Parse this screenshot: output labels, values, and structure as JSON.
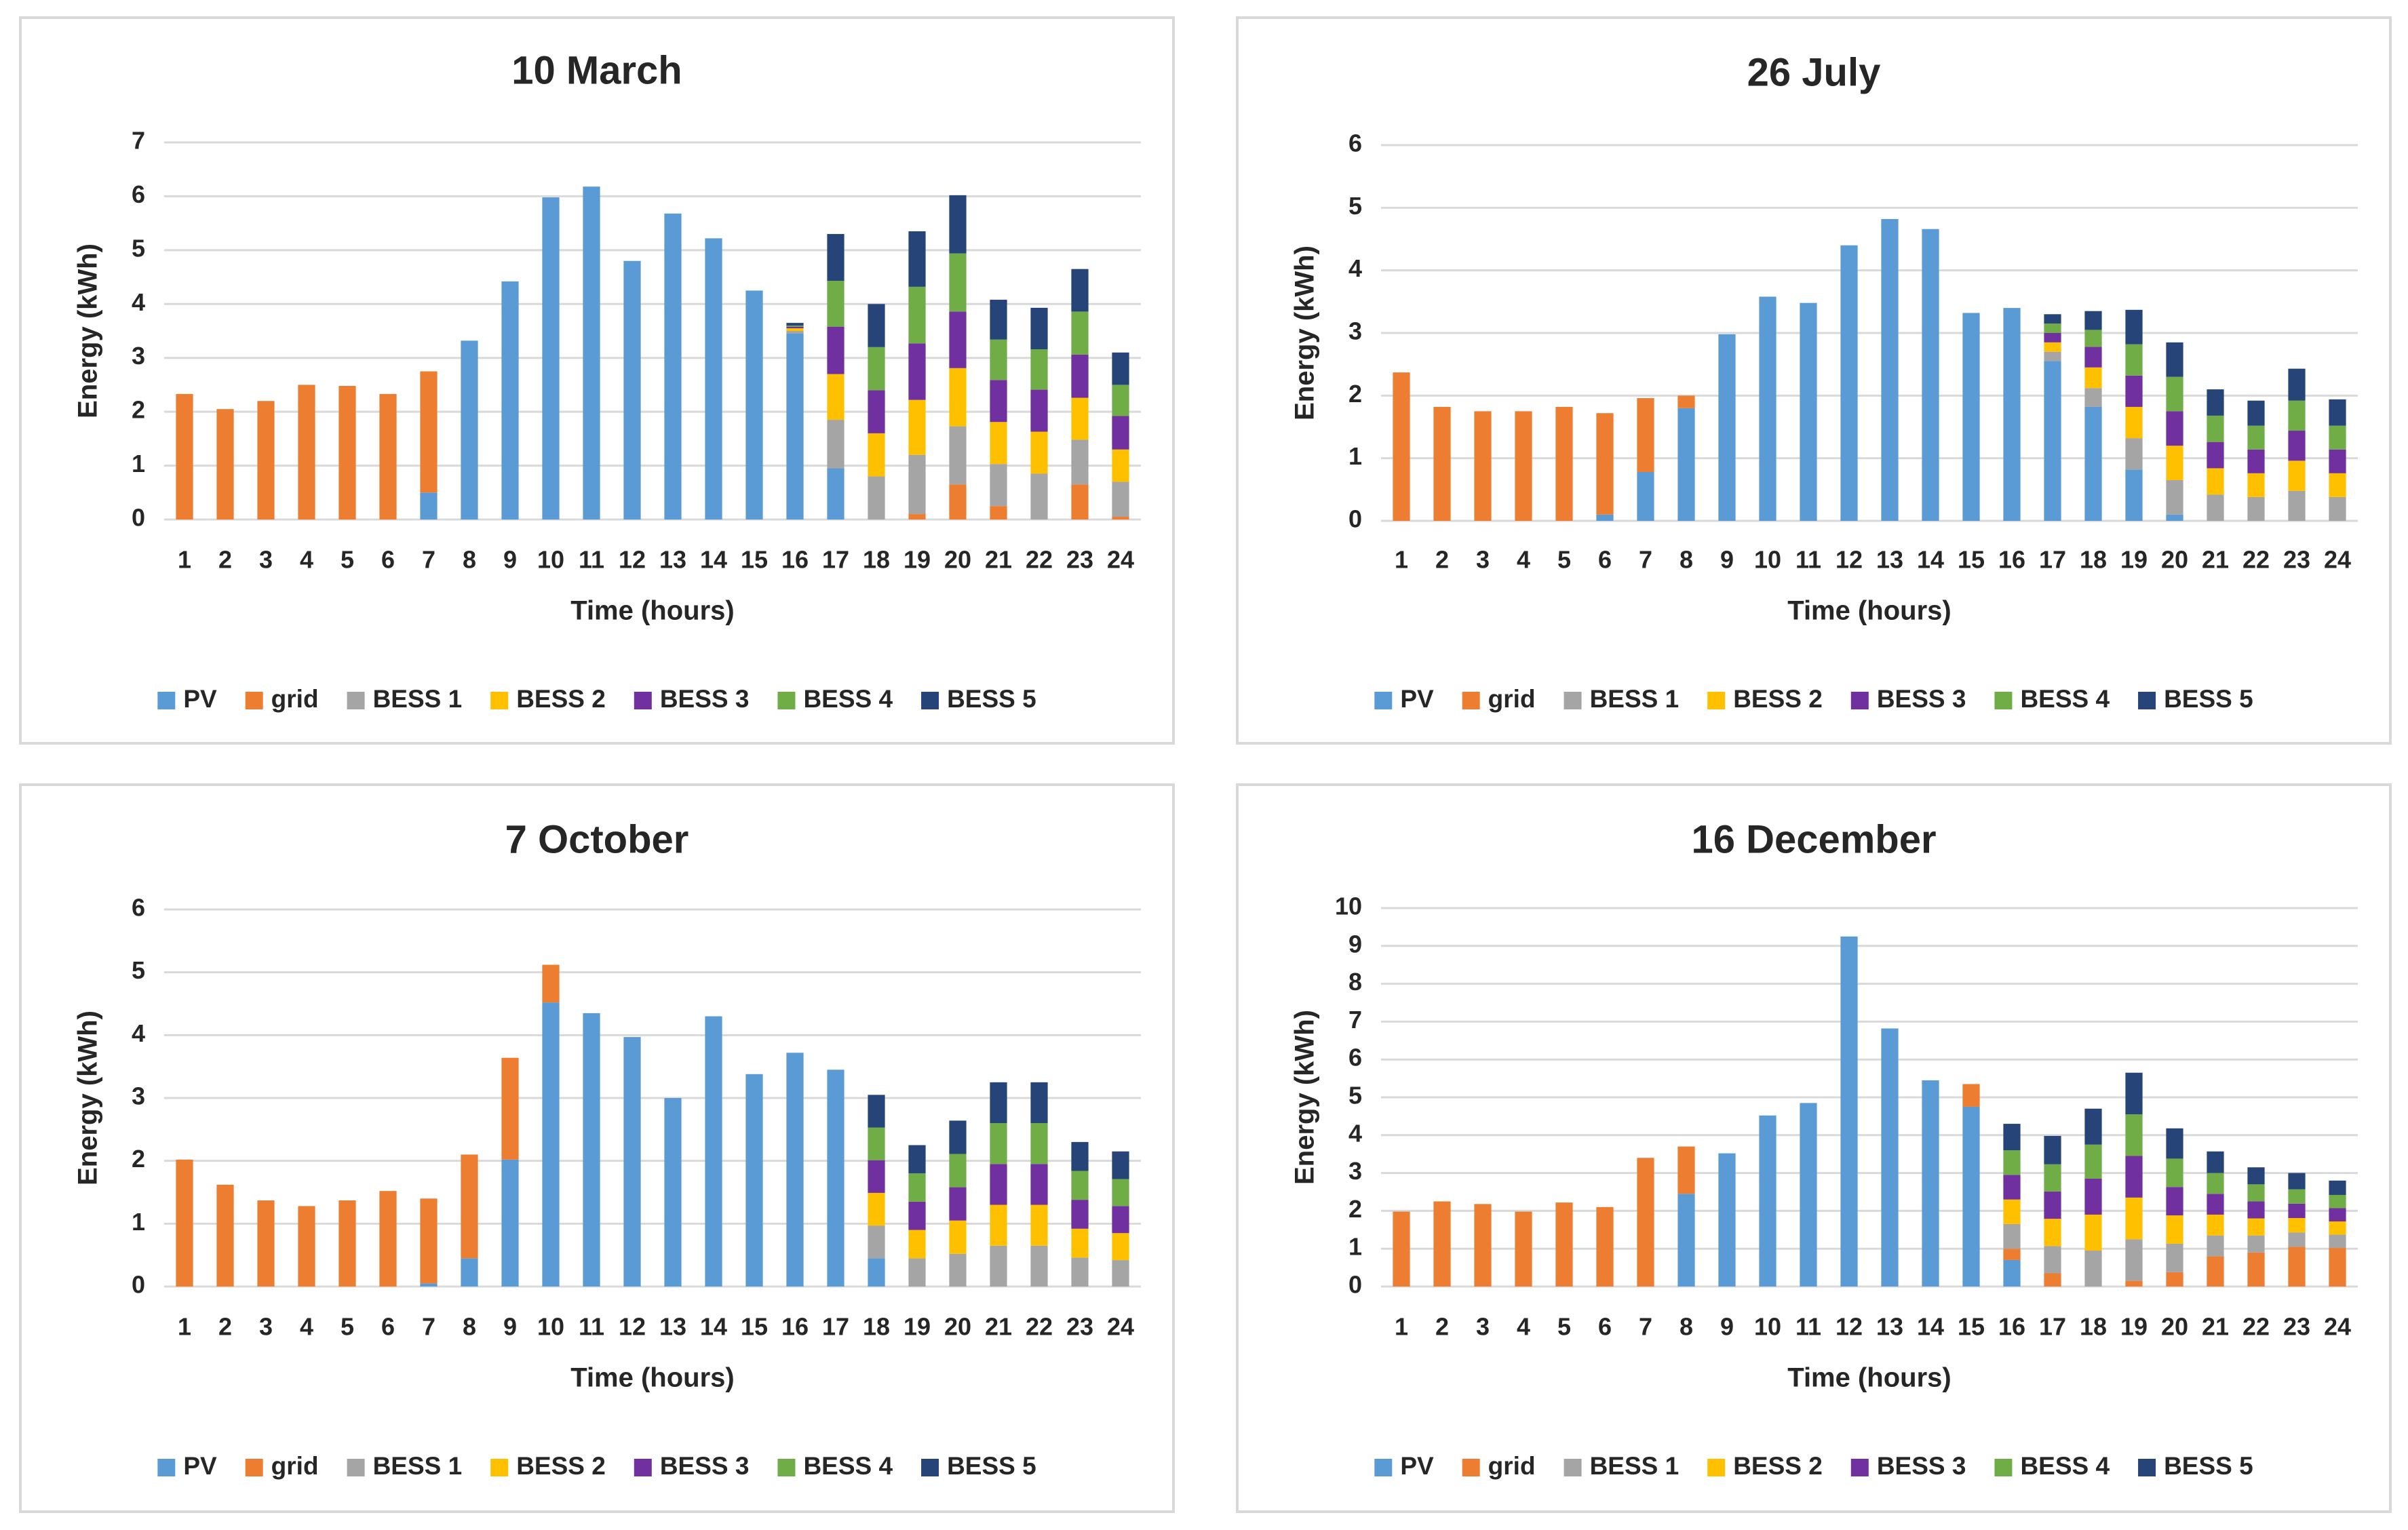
{
  "colors": {
    "PV": "#5b9bd5",
    "grid": "#ed7d31",
    "BESS 1": "#a5a5a5",
    "BESS 2": "#ffc000",
    "BESS 3": "#7030a0",
    "BESS 4": "#70ad47",
    "BESS 5": "#264478",
    "gridline": "#d9d9d9",
    "border": "#d9d9d9"
  },
  "chart_data": [
    {
      "type": "bar",
      "stacked": true,
      "title": "10 March",
      "xlabel": "Time (hours)",
      "ylabel": "Energy (kWh)",
      "ylim": [
        0,
        7
      ],
      "yticks": [
        0,
        1,
        2,
        3,
        4,
        5,
        6,
        7
      ],
      "grid": true,
      "legend": "bottom",
      "categories": [
        "1",
        "2",
        "3",
        "4",
        "5",
        "6",
        "7",
        "8",
        "9",
        "10",
        "11",
        "12",
        "13",
        "14",
        "15",
        "16",
        "17",
        "18",
        "19",
        "20",
        "21",
        "22",
        "23",
        "24"
      ],
      "series": [
        {
          "name": "PV",
          "values": [
            0,
            0,
            0,
            0,
            0,
            0,
            0.5,
            3.32,
            4.42,
            5.98,
            6.18,
            4.8,
            5.68,
            5.22,
            4.25,
            3.45,
            0.95,
            0,
            0,
            0,
            0,
            0,
            0,
            0
          ]
        },
        {
          "name": "grid",
          "values": [
            2.33,
            2.05,
            2.2,
            2.5,
            2.48,
            2.33,
            2.25,
            0,
            0,
            0,
            0,
            0,
            0,
            0,
            0,
            0,
            0,
            0,
            0.1,
            0.65,
            0.25,
            0,
            0.65,
            0.05
          ]
        },
        {
          "name": "BESS 1",
          "values": [
            0,
            0,
            0,
            0,
            0,
            0,
            0,
            0,
            0,
            0,
            0,
            0,
            0,
            0,
            0,
            0.05,
            0.9,
            0.8,
            1.1,
            1.08,
            0.78,
            0.85,
            0.83,
            0.65
          ]
        },
        {
          "name": "BESS 2",
          "values": [
            0,
            0,
            0,
            0,
            0,
            0,
            0,
            0,
            0,
            0,
            0,
            0,
            0,
            0,
            0,
            0.05,
            0.85,
            0.8,
            1.02,
            1.08,
            0.78,
            0.78,
            0.78,
            0.6
          ]
        },
        {
          "name": "BESS 3",
          "values": [
            0,
            0,
            0,
            0,
            0,
            0,
            0,
            0,
            0,
            0,
            0,
            0,
            0,
            0,
            0,
            0.03,
            0.88,
            0.8,
            1.05,
            1.05,
            0.78,
            0.78,
            0.8,
            0.62
          ]
        },
        {
          "name": "BESS 4",
          "values": [
            0,
            0,
            0,
            0,
            0,
            0,
            0,
            0,
            0,
            0,
            0,
            0,
            0,
            0,
            0,
            0.02,
            0.85,
            0.8,
            1.05,
            1.08,
            0.75,
            0.75,
            0.8,
            0.58
          ]
        },
        {
          "name": "BESS 5",
          "values": [
            0,
            0,
            0,
            0,
            0,
            0,
            0,
            0,
            0,
            0,
            0,
            0,
            0,
            0,
            0,
            0.05,
            0.87,
            0.8,
            1.03,
            1.08,
            0.74,
            0.77,
            0.79,
            0.6
          ]
        }
      ]
    },
    {
      "type": "bar",
      "stacked": true,
      "title": "26 July",
      "xlabel": "Time (hours)",
      "ylabel": "Energy (kWh)",
      "ylim": [
        0,
        6
      ],
      "yticks": [
        0,
        1,
        2,
        3,
        4,
        5,
        6
      ],
      "grid": true,
      "legend": "bottom",
      "categories": [
        "1",
        "2",
        "3",
        "4",
        "5",
        "6",
        "7",
        "8",
        "9",
        "10",
        "11",
        "12",
        "13",
        "14",
        "15",
        "16",
        "17",
        "18",
        "19",
        "20",
        "21",
        "22",
        "23",
        "24"
      ],
      "series": [
        {
          "name": "PV",
          "values": [
            0,
            0,
            0,
            0,
            0,
            0.1,
            0.78,
            1.8,
            2.98,
            3.58,
            3.48,
            4.4,
            4.82,
            4.66,
            3.32,
            3.4,
            2.55,
            1.82,
            0.82,
            0.1,
            0,
            0,
            0,
            0
          ]
        },
        {
          "name": "grid",
          "values": [
            2.37,
            1.82,
            1.75,
            1.75,
            1.82,
            1.62,
            1.18,
            0.2,
            0,
            0,
            0,
            0,
            0,
            0,
            0,
            0,
            0,
            0,
            0,
            0,
            0,
            0,
            0,
            0
          ]
        },
        {
          "name": "BESS 1",
          "values": [
            0,
            0,
            0,
            0,
            0,
            0,
            0,
            0,
            0,
            0,
            0,
            0,
            0,
            0,
            0,
            0,
            0.15,
            0.3,
            0.5,
            0.55,
            0.42,
            0.38,
            0.48,
            0.38
          ]
        },
        {
          "name": "BESS 2",
          "values": [
            0,
            0,
            0,
            0,
            0,
            0,
            0,
            0,
            0,
            0,
            0,
            0,
            0,
            0,
            0,
            0,
            0.15,
            0.33,
            0.5,
            0.55,
            0.42,
            0.38,
            0.48,
            0.38
          ]
        },
        {
          "name": "BESS 3",
          "values": [
            0,
            0,
            0,
            0,
            0,
            0,
            0,
            0,
            0,
            0,
            0,
            0,
            0,
            0,
            0,
            0,
            0.15,
            0.33,
            0.5,
            0.55,
            0.42,
            0.38,
            0.48,
            0.38
          ]
        },
        {
          "name": "BESS 4",
          "values": [
            0,
            0,
            0,
            0,
            0,
            0,
            0,
            0,
            0,
            0,
            0,
            0,
            0,
            0,
            0,
            0,
            0.15,
            0.27,
            0.5,
            0.55,
            0.42,
            0.38,
            0.48,
            0.38
          ]
        },
        {
          "name": "BESS 5",
          "values": [
            0,
            0,
            0,
            0,
            0,
            0,
            0,
            0,
            0,
            0,
            0,
            0,
            0,
            0,
            0,
            0,
            0.15,
            0.3,
            0.55,
            0.55,
            0.42,
            0.4,
            0.51,
            0.42
          ]
        }
      ]
    },
    {
      "type": "bar",
      "stacked": true,
      "title": "7 October",
      "xlabel": "Time (hours)",
      "ylabel": "Energy (kWh)",
      "ylim": [
        0,
        6
      ],
      "yticks": [
        0,
        1,
        2,
        3,
        4,
        5,
        6
      ],
      "grid": true,
      "legend": "bottom",
      "categories": [
        "1",
        "2",
        "3",
        "4",
        "5",
        "6",
        "7",
        "8",
        "9",
        "10",
        "11",
        "12",
        "13",
        "14",
        "15",
        "16",
        "17",
        "18",
        "19",
        "20",
        "21",
        "22",
        "23",
        "24"
      ],
      "series": [
        {
          "name": "PV",
          "values": [
            0,
            0,
            0,
            0,
            0,
            0,
            0.05,
            0.45,
            2.02,
            4.52,
            4.35,
            3.97,
            3.0,
            4.3,
            3.38,
            3.72,
            3.45,
            0.45,
            0,
            0,
            0,
            0,
            0,
            0
          ]
        },
        {
          "name": "grid",
          "values": [
            2.02,
            1.62,
            1.37,
            1.28,
            1.37,
            1.52,
            1.35,
            1.65,
            1.62,
            0.6,
            0,
            0,
            0,
            0,
            0,
            0,
            0,
            0,
            0,
            0,
            0,
            0,
            0,
            0
          ]
        },
        {
          "name": "BESS 1",
          "values": [
            0,
            0,
            0,
            0,
            0,
            0,
            0,
            0,
            0,
            0,
            0,
            0,
            0,
            0,
            0,
            0,
            0,
            0.52,
            0.45,
            0.52,
            0.65,
            0.65,
            0.46,
            0.42
          ]
        },
        {
          "name": "BESS 2",
          "values": [
            0,
            0,
            0,
            0,
            0,
            0,
            0,
            0,
            0,
            0,
            0,
            0,
            0,
            0,
            0,
            0,
            0,
            0.52,
            0.45,
            0.53,
            0.65,
            0.65,
            0.46,
            0.43
          ]
        },
        {
          "name": "BESS 3",
          "values": [
            0,
            0,
            0,
            0,
            0,
            0,
            0,
            0,
            0,
            0,
            0,
            0,
            0,
            0,
            0,
            0,
            0,
            0.52,
            0.45,
            0.53,
            0.65,
            0.65,
            0.46,
            0.43
          ]
        },
        {
          "name": "BESS 4",
          "values": [
            0,
            0,
            0,
            0,
            0,
            0,
            0,
            0,
            0,
            0,
            0,
            0,
            0,
            0,
            0,
            0,
            0,
            0.52,
            0.45,
            0.53,
            0.65,
            0.65,
            0.46,
            0.43
          ]
        },
        {
          "name": "BESS 5",
          "values": [
            0,
            0,
            0,
            0,
            0,
            0,
            0,
            0,
            0,
            0,
            0,
            0,
            0,
            0,
            0,
            0,
            0,
            0.52,
            0.45,
            0.53,
            0.65,
            0.65,
            0.46,
            0.44
          ]
        }
      ]
    },
    {
      "type": "bar",
      "stacked": true,
      "title": "16 December",
      "xlabel": "Time (hours)",
      "ylabel": "Energy (kWh)",
      "ylim": [
        0,
        10
      ],
      "yticks": [
        0,
        1,
        2,
        3,
        4,
        5,
        6,
        7,
        8,
        9,
        10
      ],
      "grid": true,
      "legend": "bottom",
      "categories": [
        "1",
        "2",
        "3",
        "4",
        "5",
        "6",
        "7",
        "8",
        "9",
        "10",
        "11",
        "12",
        "13",
        "14",
        "15",
        "16",
        "17",
        "18",
        "19",
        "20",
        "21",
        "22",
        "23",
        "24"
      ],
      "series": [
        {
          "name": "PV",
          "values": [
            0,
            0,
            0,
            0,
            0,
            0,
            0,
            2.45,
            3.52,
            4.52,
            4.85,
            9.25,
            6.82,
            5.45,
            4.75,
            0.7,
            0,
            0,
            0,
            0,
            0,
            0,
            0,
            0
          ]
        },
        {
          "name": "grid",
          "values": [
            1.98,
            2.25,
            2.18,
            1.98,
            2.22,
            2.1,
            3.4,
            1.25,
            0,
            0,
            0,
            0,
            0,
            0,
            0.6,
            0.3,
            0.35,
            0,
            0.15,
            0.38,
            0.8,
            0.9,
            1.05,
            1.02
          ]
        },
        {
          "name": "BESS 1",
          "values": [
            0,
            0,
            0,
            0,
            0,
            0,
            0,
            0,
            0,
            0,
            0,
            0,
            0,
            0,
            0,
            0.65,
            0.72,
            0.95,
            1.1,
            0.75,
            0.55,
            0.45,
            0.38,
            0.35
          ]
        },
        {
          "name": "BESS 2",
          "values": [
            0,
            0,
            0,
            0,
            0,
            0,
            0,
            0,
            0,
            0,
            0,
            0,
            0,
            0,
            0,
            0.65,
            0.72,
            0.95,
            1.1,
            0.75,
            0.55,
            0.45,
            0.38,
            0.35
          ]
        },
        {
          "name": "BESS 3",
          "values": [
            0,
            0,
            0,
            0,
            0,
            0,
            0,
            0,
            0,
            0,
            0,
            0,
            0,
            0,
            0,
            0.65,
            0.72,
            0.95,
            1.1,
            0.75,
            0.55,
            0.45,
            0.38,
            0.35
          ]
        },
        {
          "name": "BESS 4",
          "values": [
            0,
            0,
            0,
            0,
            0,
            0,
            0,
            0,
            0,
            0,
            0,
            0,
            0,
            0,
            0,
            0.65,
            0.72,
            0.9,
            1.1,
            0.75,
            0.55,
            0.45,
            0.38,
            0.35
          ]
        },
        {
          "name": "BESS 5",
          "values": [
            0,
            0,
            0,
            0,
            0,
            0,
            0,
            0,
            0,
            0,
            0,
            0,
            0,
            0,
            0,
            0.7,
            0.75,
            0.95,
            1.1,
            0.8,
            0.57,
            0.45,
            0.43,
            0.38
          ]
        }
      ]
    }
  ]
}
